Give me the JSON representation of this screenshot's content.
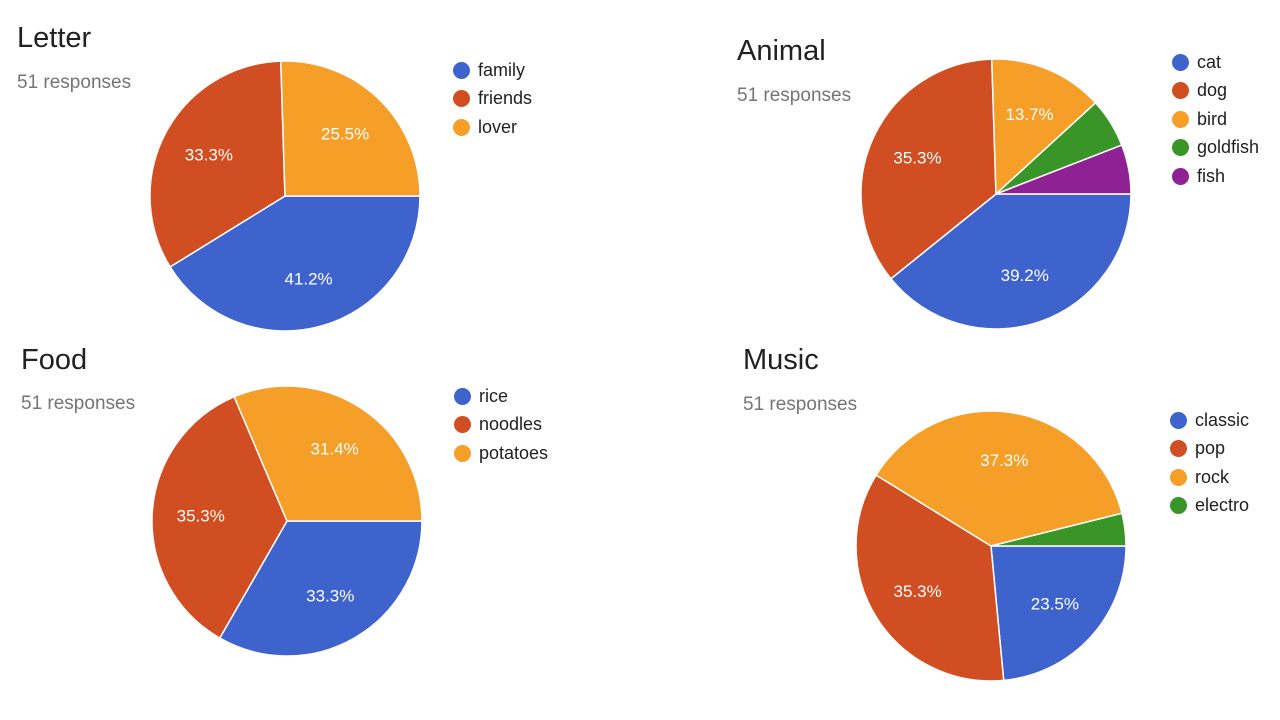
{
  "chart_data": [
    {
      "type": "pie",
      "title": "Letter",
      "subtitle": "51 responses",
      "legend_position": "right",
      "categories": [
        "family",
        "friends",
        "lover"
      ],
      "values": [
        41.2,
        33.3,
        25.5
      ],
      "labels": [
        "41.2%",
        "33.3%",
        "25.5%"
      ],
      "colors": [
        "#3e63cc",
        "#d04e22",
        "#f59f28"
      ]
    },
    {
      "type": "pie",
      "title": "Animal",
      "subtitle": "51 responses",
      "legend_position": "right",
      "categories": [
        "cat",
        "dog",
        "bird",
        "goldfish",
        "fish"
      ],
      "values": [
        39.2,
        35.3,
        13.7,
        5.9,
        5.9
      ],
      "labels": [
        "39.2%",
        "35.3%",
        "13.7%",
        "",
        ""
      ],
      "colors": [
        "#3e63cc",
        "#d04e22",
        "#f59f28",
        "#3a9528",
        "#8e2294"
      ]
    },
    {
      "type": "pie",
      "title": "Food",
      "subtitle": "51 responses",
      "legend_position": "right",
      "categories": [
        "rice",
        "noodles",
        "potatoes"
      ],
      "values": [
        33.3,
        35.3,
        31.4
      ],
      "labels": [
        "33.3%",
        "35.3%",
        "31.4%"
      ],
      "colors": [
        "#3e63cc",
        "#d04e22",
        "#f59f28"
      ]
    },
    {
      "type": "pie",
      "title": "Music",
      "subtitle": "51 responses",
      "legend_position": "right",
      "categories": [
        "classic",
        "pop",
        "rock",
        "electro"
      ],
      "values": [
        23.5,
        35.3,
        37.3,
        3.9
      ],
      "labels": [
        "23.5%",
        "35.3%",
        "37.3%",
        ""
      ],
      "colors": [
        "#3e63cc",
        "#d04e22",
        "#f59f28",
        "#3a9528"
      ]
    }
  ]
}
